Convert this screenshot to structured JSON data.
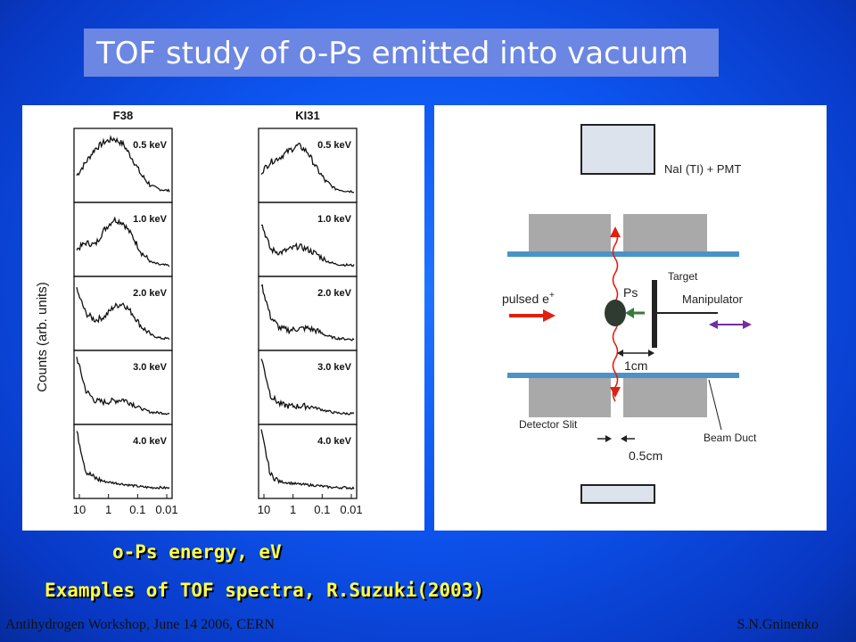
{
  "slide": {
    "title": "TOF study of o-Ps emitted into vacuum",
    "caption_energy": "o-Ps energy, eV",
    "caption_examples": "Examples of TOF spectra, R.Suzuki(2003)",
    "footer_left": "Antihydrogen Workshop, June 14 2006, CERN",
    "footer_right": "S.N.Gninenko"
  },
  "chart_data": {
    "type": "line",
    "ylabel": "Counts (arb. units)",
    "x_ticks": [
      "10",
      "1",
      "0.1",
      "0.01"
    ],
    "columns": [
      {
        "name": "F38",
        "panels": [
          {
            "label": "0.5 keV",
            "y": [
              0.35,
              0.55,
              0.75,
              0.85,
              0.9,
              0.82,
              0.6,
              0.35,
              0.2,
              0.14,
              0.12
            ]
          },
          {
            "label": "1.0 keV",
            "y": [
              0.35,
              0.45,
              0.42,
              0.65,
              0.8,
              0.75,
              0.55,
              0.3,
              0.16,
              0.12,
              0.11
            ]
          },
          {
            "label": "2.0 keV",
            "y": [
              0.85,
              0.5,
              0.4,
              0.45,
              0.6,
              0.65,
              0.5,
              0.3,
              0.18,
              0.13,
              0.12
            ]
          },
          {
            "label": "3.0 keV",
            "y": [
              0.95,
              0.45,
              0.3,
              0.28,
              0.3,
              0.32,
              0.26,
              0.18,
              0.13,
              0.12,
              0.11
            ]
          },
          {
            "label": "4.0 keV",
            "y": [
              0.95,
              0.35,
              0.25,
              0.2,
              0.18,
              0.16,
              0.14,
              0.12,
              0.11,
              0.11,
              0.1
            ]
          }
        ]
      },
      {
        "name": "KI31",
        "panels": [
          {
            "label": "0.5 keV",
            "y": [
              0.4,
              0.55,
              0.62,
              0.72,
              0.8,
              0.7,
              0.45,
              0.25,
              0.15,
              0.12,
              0.11
            ]
          },
          {
            "label": "1.0 keV",
            "y": [
              0.75,
              0.35,
              0.3,
              0.35,
              0.4,
              0.35,
              0.28,
              0.18,
              0.13,
              0.12,
              0.11
            ]
          },
          {
            "label": "2.0 keV",
            "y": [
              0.95,
              0.45,
              0.28,
              0.25,
              0.27,
              0.28,
              0.24,
              0.17,
              0.13,
              0.12,
              0.11
            ]
          },
          {
            "label": "3.0 keV",
            "y": [
              0.95,
              0.38,
              0.25,
              0.22,
              0.22,
              0.22,
              0.19,
              0.15,
              0.12,
              0.11,
              0.11
            ]
          },
          {
            "label": "4.0 keV",
            "y": [
              0.95,
              0.3,
              0.2,
              0.18,
              0.16,
              0.15,
              0.14,
              0.12,
              0.11,
              0.11,
              0.1
            ]
          }
        ]
      }
    ]
  },
  "diagram": {
    "detector_label": "NaI (TI) + PMT",
    "target_label": "Target",
    "ps_label": "Ps",
    "beam_label": "pulsed e",
    "beam_superscript": "+",
    "manipulator_label": "Manipulator",
    "distance_label": "1cm",
    "slit_label": "Detector Slit",
    "duct_label": "Beam Duct",
    "slit_width_label": "0.5cm"
  }
}
